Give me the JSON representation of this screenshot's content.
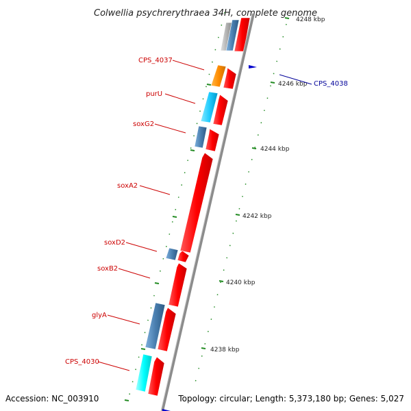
{
  "title": "Colwellia psychrerythraea 34H, complete genome",
  "accession": "Accession: NC_003910",
  "topology": "Topology: circular; Length: 5,373,180 bp; Genes: 5,027",
  "colors": {
    "backbone": "#8c8c8c",
    "forward_gene": "#ff0000",
    "reverse_steelblue": "#4a7fb0",
    "reverse_lightblue": "#22ccff",
    "reverse_cyan": "#00ffff",
    "reverse_orange": "#ff8c00",
    "reverse_grey": "#b4b4b4",
    "gene_label": "#cc0000",
    "highlight_label": "#000099",
    "tick": "#228b22"
  },
  "scale_labels": [
    "4248 kbp",
    "4246 kbp",
    "4244 kbp",
    "4242 kbp",
    "4240 kbp",
    "4238 kbp"
  ],
  "gene_labels": [
    {
      "text": "CPS_4037",
      "highlight": false
    },
    {
      "text": "purU",
      "highlight": false
    },
    {
      "text": "soxG2",
      "highlight": false
    },
    {
      "text": "soxA2",
      "highlight": false
    },
    {
      "text": "soxD2",
      "highlight": false
    },
    {
      "text": "soxB2",
      "highlight": false
    },
    {
      "text": "glyA",
      "highlight": false
    },
    {
      "text": "CPS_4030",
      "highlight": false
    },
    {
      "text": "CPS_4038",
      "highlight": true
    }
  ]
}
